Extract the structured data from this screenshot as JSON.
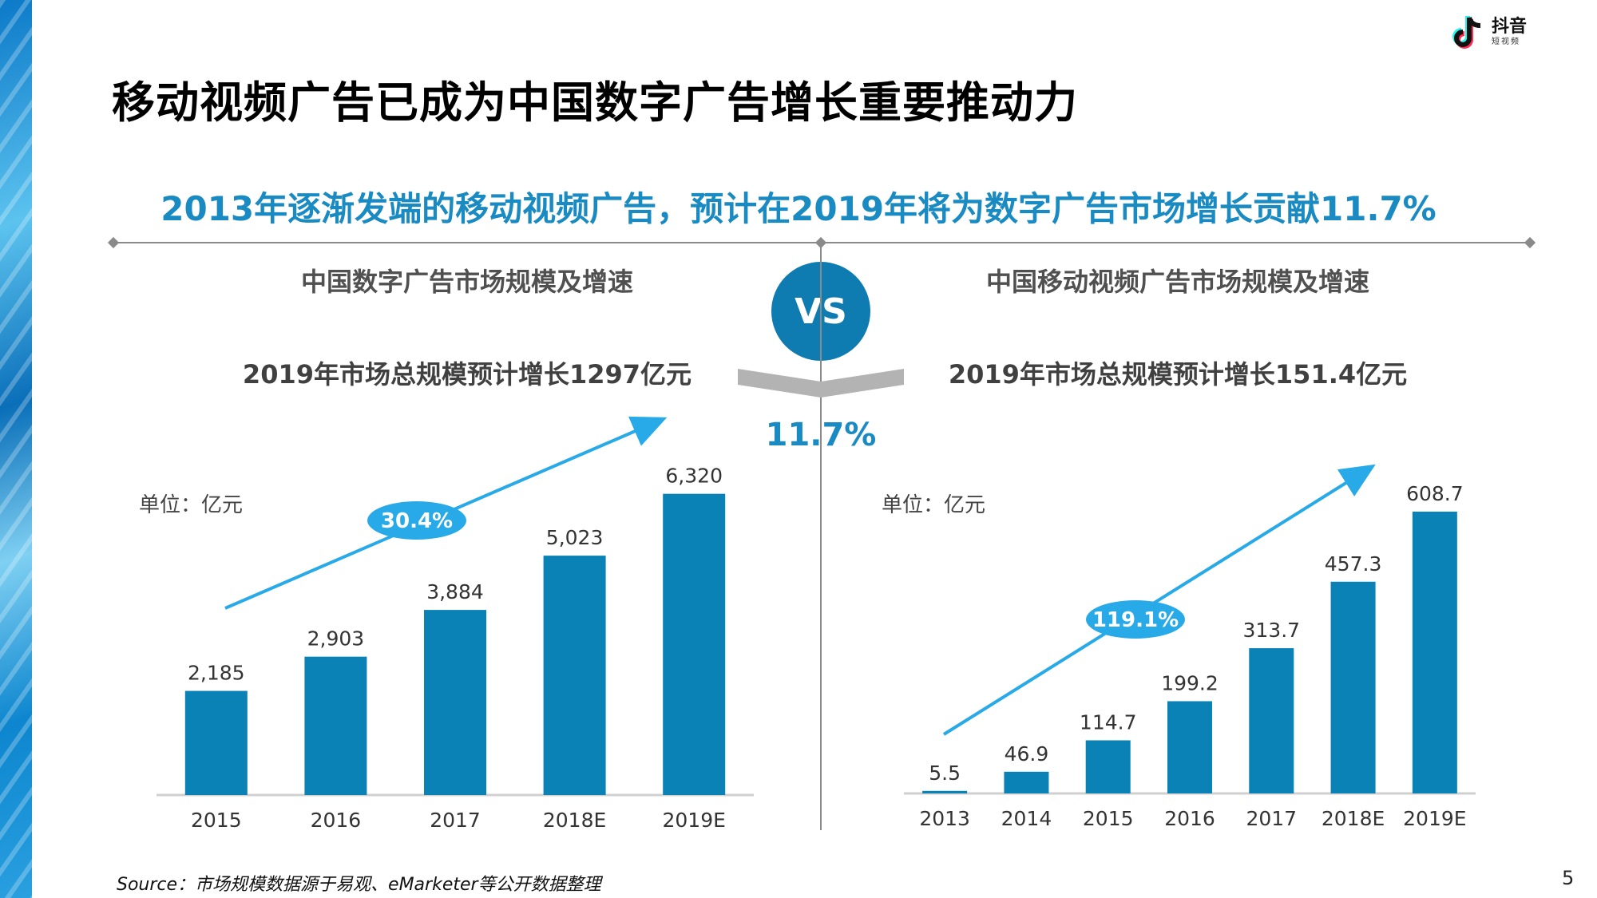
{
  "title": "移动视频广告已成为中国数字广告增长重要推动力",
  "subtitle": "2013年逐渐发端的移动视频广告，预计在2019年将为数字广告市场增长贡献11.7%",
  "logo": {
    "text": "抖音",
    "subtext": "短视频"
  },
  "vs_label": "VS",
  "share_label": "11.7%",
  "source": "Source：市场规模数据源于易观、eMarketer等公开数据整理",
  "page_number": "5",
  "colors": {
    "bar": "#0a82b6",
    "accent": "#1a8bc2",
    "arrow": "#28a9e8",
    "divider": "#7f7f7f"
  },
  "left": {
    "growth_note": "2019年市场总规模预计增长1297亿元"
  },
  "right": {
    "growth_note": "2019年市场总规模预计增长151.4亿元"
  },
  "chart_data": [
    {
      "type": "bar",
      "title": "中国数字广告市场规模及增速",
      "unit_label": "单位：亿元",
      "categories": [
        "2015",
        "2016",
        "2017",
        "2018E",
        "2019E"
      ],
      "values": [
        2185,
        2903,
        3884,
        5023,
        6320
      ],
      "value_labels": [
        "2,185",
        "2,903",
        "3,884",
        "5,023",
        "6,320"
      ],
      "ylim": [
        0,
        6800
      ],
      "growth_label": "30.4%",
      "grid": false,
      "legend": "none"
    },
    {
      "type": "bar",
      "title": "中国移动视频广告市场规模及增速",
      "unit_label": "单位：亿元",
      "categories": [
        "2013",
        "2014",
        "2015",
        "2016",
        "2017",
        "2018E",
        "2019E"
      ],
      "values": [
        5.5,
        46.9,
        114.7,
        199.2,
        313.7,
        457.3,
        608.7
      ],
      "value_labels": [
        "5.5",
        "46.9",
        "114.7",
        "199.2",
        "313.7",
        "457.3",
        "608.7"
      ],
      "ylim": [
        0,
        700
      ],
      "growth_label": "119.1%",
      "grid": false,
      "legend": "none"
    }
  ]
}
